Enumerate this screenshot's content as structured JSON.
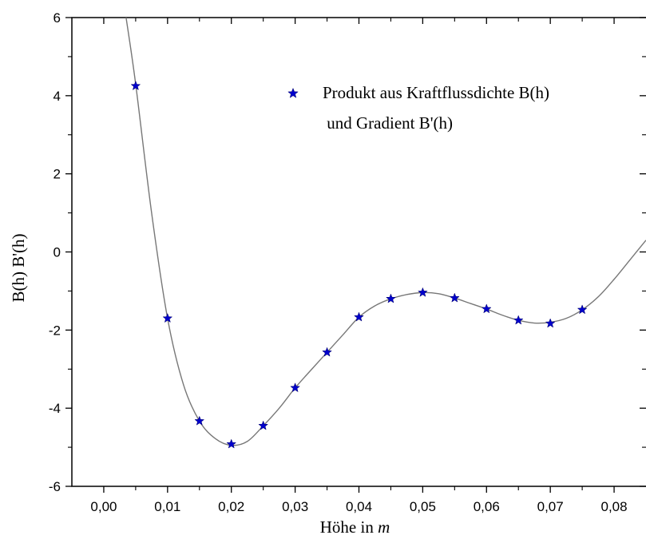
{
  "chart_data": {
    "type": "scatter",
    "title": "",
    "xlabel": "Höhe in ",
    "xlabel_italic": "m",
    "ylabel": "B(h) B'(h)",
    "xlim": [
      -0.005,
      0.085
    ],
    "ylim": [
      -6,
      6
    ],
    "x_ticks": [
      "0,00",
      "0,01",
      "0,02",
      "0,03",
      "0,04",
      "0,05",
      "0,06",
      "0,07",
      "0,08"
    ],
    "y_ticks": [
      "-6",
      "-4",
      "-2",
      "0",
      "2",
      "4",
      "6"
    ],
    "grid": false,
    "legend_position": "top-right",
    "legend": [
      "Produkt aus Kraftflussdichte B(h)",
      " und Gradient B'(h)"
    ],
    "marker_color": "#0000cc",
    "curve_color": "#777777",
    "series": [
      {
        "name": "Produkt aus Kraftflussdichte B(h) und Gradient B'(h)",
        "marker": "star",
        "x": [
          0.005,
          0.01,
          0.015,
          0.02,
          0.025,
          0.03,
          0.035,
          0.04,
          0.045,
          0.05,
          0.055,
          0.06,
          0.065,
          0.07,
          0.075
        ],
        "y": [
          4.25,
          -1.7,
          -4.33,
          -4.92,
          -4.45,
          -3.48,
          -2.57,
          -1.67,
          -1.2,
          -1.04,
          -1.18,
          -1.46,
          -1.75,
          -1.83,
          -1.48
        ]
      },
      {
        "type": "line",
        "x": [
          0.0035,
          0.005,
          0.0075,
          0.01,
          0.0125,
          0.015,
          0.0175,
          0.02,
          0.0225,
          0.025,
          0.0275,
          0.03,
          0.0325,
          0.035,
          0.0375,
          0.04,
          0.0425,
          0.045,
          0.0475,
          0.05,
          0.0525,
          0.055,
          0.0575,
          0.06,
          0.0625,
          0.065,
          0.0675,
          0.07,
          0.0725,
          0.075,
          0.0775,
          0.08,
          0.0825,
          0.085
        ],
        "y": [
          6.0,
          4.3,
          1.0,
          -1.7,
          -3.4,
          -4.33,
          -4.78,
          -4.95,
          -4.85,
          -4.45,
          -4.0,
          -3.48,
          -3.02,
          -2.57,
          -2.12,
          -1.67,
          -1.38,
          -1.2,
          -1.09,
          -1.04,
          -1.07,
          -1.18,
          -1.32,
          -1.46,
          -1.62,
          -1.75,
          -1.82,
          -1.8,
          -1.7,
          -1.48,
          -1.15,
          -0.7,
          -0.2,
          0.3
        ]
      }
    ]
  }
}
